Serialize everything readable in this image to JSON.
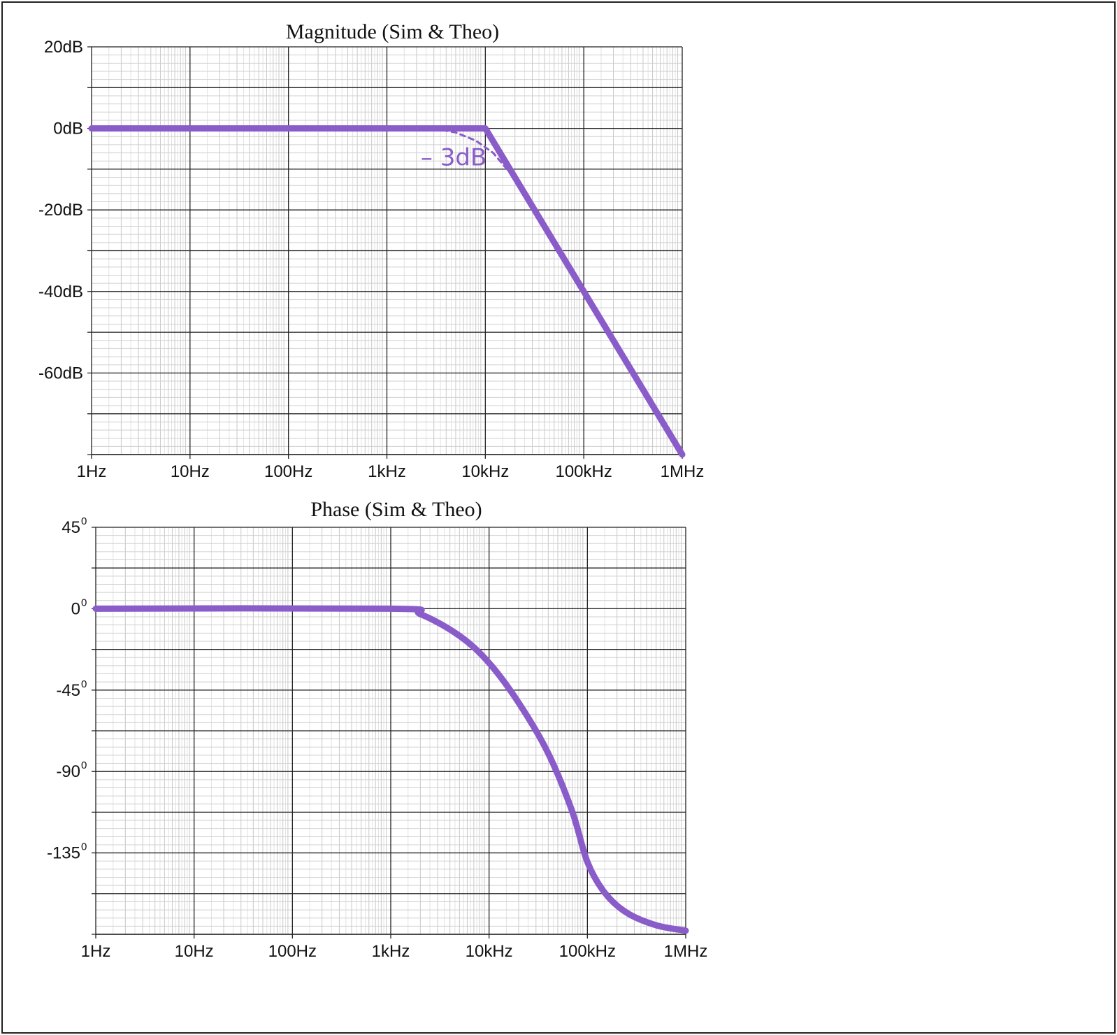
{
  "chart_data": [
    {
      "type": "line",
      "title": "Magnitude (Sim & Theo)",
      "x_scale": "log",
      "xlim": [
        1,
        1000000
      ],
      "ylim": [
        -80,
        20
      ],
      "x_tick_labels": [
        "1Hz",
        "10Hz",
        "100Hz",
        "1kHz",
        "10kHz",
        "100kHz",
        "1MHz"
      ],
      "x_tick_values": [
        1,
        10,
        100,
        1000,
        10000,
        100000,
        1000000
      ],
      "y_tick_labels": [
        "20dB",
        "0dB",
        "-20dB",
        "-40dB",
        "-60dB"
      ],
      "y_tick_values": [
        20,
        0,
        -20,
        -40,
        -60
      ],
      "grid": true,
      "line_color": "#8a5cc9",
      "series": [
        {
          "x": [
            1,
            10000,
            1000000
          ],
          "y": [
            0,
            0,
            -80
          ],
          "style": "solid"
        },
        {
          "x": [
            3000,
            5000,
            8000,
            12000,
            18000
          ],
          "y": [
            0,
            -1,
            -3,
            -6,
            -11
          ],
          "style": "dashed"
        }
      ],
      "annotations": [
        {
          "text": "– 3dB",
          "x": 2000,
          "y": -7
        }
      ]
    },
    {
      "type": "line",
      "title": "Phase (Sim & Theo)",
      "x_scale": "log",
      "xlim": [
        1,
        1000000
      ],
      "ylim": [
        -180,
        45
      ],
      "x_tick_labels": [
        "1Hz",
        "10Hz",
        "100Hz",
        "1kHz",
        "10kHz",
        "100kHz",
        "1MHz"
      ],
      "x_tick_values": [
        1,
        10,
        100,
        1000,
        10000,
        100000,
        1000000
      ],
      "y_tick_labels": [
        {
          "base": "45",
          "sup": "0"
        },
        {
          "base": "0",
          "sup": "0"
        },
        {
          "base": "-45",
          "sup": "0"
        },
        {
          "base": "-90",
          "sup": "0"
        },
        {
          "base": "-135",
          "sup": "0"
        }
      ],
      "y_tick_values": [
        45,
        0,
        -45,
        -90,
        -135
      ],
      "grid": true,
      "line_color": "#8a5cc9",
      "series": [
        {
          "x": [
            1,
            1000,
            2000,
            5000,
            10000,
            20000,
            40000,
            70000,
            100000,
            150000,
            250000,
            500000,
            1000000
          ],
          "y": [
            0,
            0,
            -3,
            -15,
            -30,
            -52,
            -80,
            -112,
            -140,
            -157,
            -168,
            -175,
            -178
          ],
          "style": "solid"
        }
      ]
    }
  ]
}
